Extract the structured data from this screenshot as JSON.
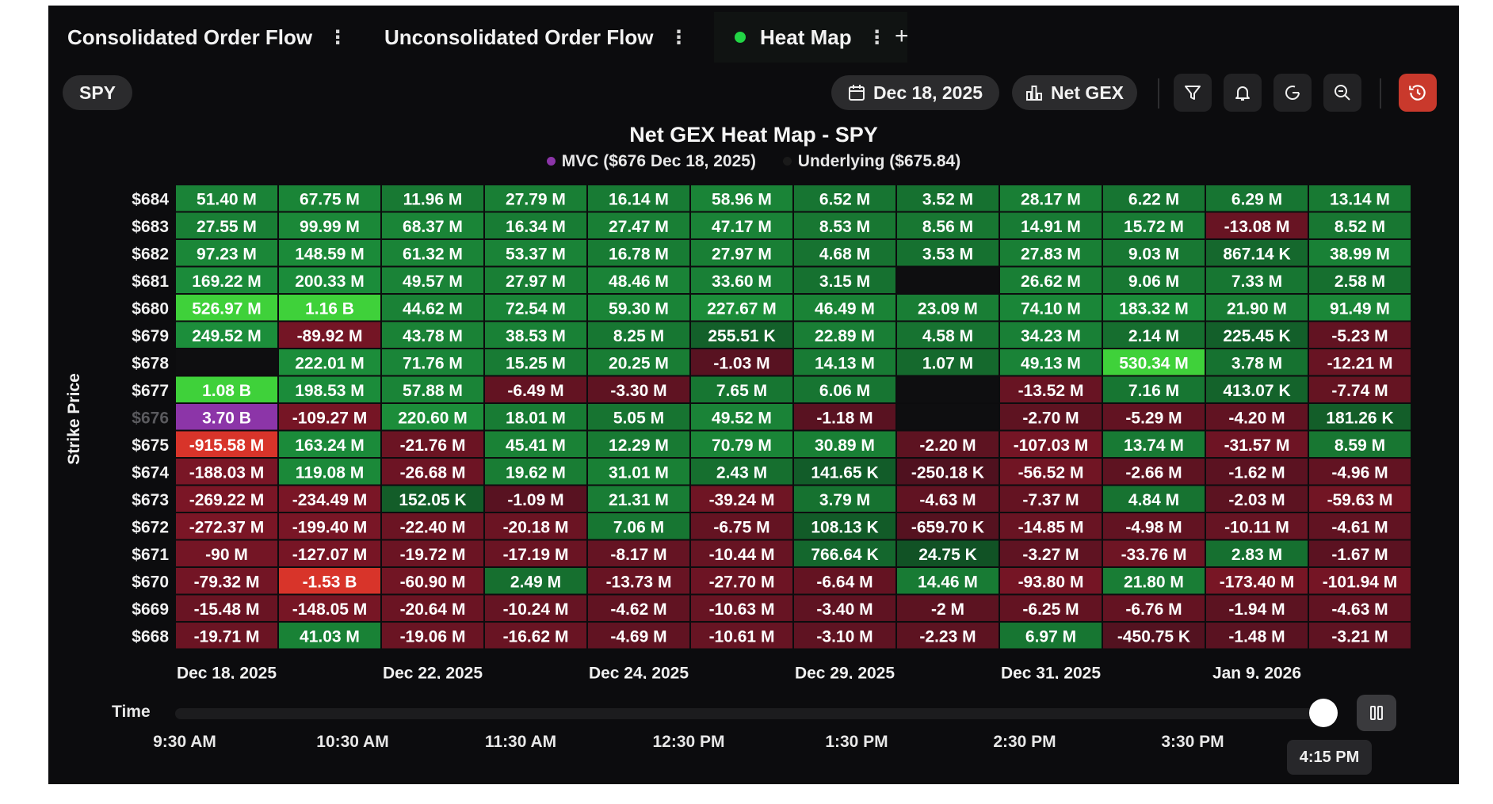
{
  "tabs": [
    {
      "label": "Consolidated Order Flow",
      "active": false
    },
    {
      "label": "Unconsolidated Order Flow",
      "active": false
    },
    {
      "label": "Heat Map",
      "active": true
    }
  ],
  "toolbar": {
    "symbol": "SPY",
    "date": "Dec 18, 2025",
    "metric": "Net GEX",
    "icons": [
      "filter-icon",
      "bell-icon",
      "refresh-icon",
      "zoom-icon",
      "history-icon"
    ]
  },
  "colors": {
    "positive": "#1b9a3a",
    "positive_strong": "#39d839",
    "negative": "#7a1424",
    "negative_strong": "#d8322a",
    "mvc": "#8c35a8",
    "underlying_dot": "#1a1a1a",
    "live_dot": "#22d545"
  },
  "chart_data": {
    "type": "heatmap",
    "title": "Net GEX Heat Map - SPY",
    "legend": [
      {
        "label": "MVC ($676 Dec 18, 2025)",
        "color": "#8c35a8"
      },
      {
        "label": "Underlying ($675.84)",
        "color": "#1a1a1a"
      }
    ],
    "ylabel": "Strike Price",
    "xlabel": "",
    "y": [
      "$684",
      "$683",
      "$682",
      "$681",
      "$680",
      "$679",
      "$678",
      "$677",
      "$676",
      "$675",
      "$674",
      "$673",
      "$672",
      "$671",
      "$670",
      "$669",
      "$668"
    ],
    "x_labels": [
      "Dec 18, 2025",
      "Dec 22, 2025",
      "Dec 24, 2025",
      "Dec 29, 2025",
      "Dec 31, 2025",
      "Jan 9, 2026"
    ],
    "columns": 12,
    "mvc_cell": {
      "row": 8,
      "col": 0
    },
    "values": [
      [
        "51.40 M",
        "67.75 M",
        "11.96 M",
        "27.79 M",
        "16.14 M",
        "58.96 M",
        "6.52 M",
        "3.52 M",
        "28.17 M",
        "6.22 M",
        "6.29 M",
        "13.14 M"
      ],
      [
        "27.55 M",
        "99.99 M",
        "68.37 M",
        "16.34 M",
        "27.47 M",
        "47.17 M",
        "8.53 M",
        "8.56 M",
        "14.91 M",
        "15.72 M",
        "-13.08 M",
        "8.52 M"
      ],
      [
        "97.23 M",
        "148.59 M",
        "61.32 M",
        "53.37 M",
        "16.78 M",
        "27.97 M",
        "4.68 M",
        "3.53 M",
        "27.83 M",
        "9.03 M",
        "867.14 K",
        "38.99 M"
      ],
      [
        "169.22 M",
        "200.33 M",
        "49.57 M",
        "27.97 M",
        "48.46 M",
        "33.60 M",
        "3.15 M",
        "",
        "26.62 M",
        "9.06 M",
        "7.33 M",
        "2.58 M"
      ],
      [
        "526.97 M",
        "1.16 B",
        "44.62 M",
        "72.54 M",
        "59.30 M",
        "227.67 M",
        "46.49 M",
        "23.09 M",
        "74.10 M",
        "183.32 M",
        "21.90 M",
        "91.49 M"
      ],
      [
        "249.52 M",
        "-89.92 M",
        "43.78 M",
        "38.53 M",
        "8.25 M",
        "255.51 K",
        "22.89 M",
        "4.58 M",
        "34.23 M",
        "2.14 M",
        "225.45 K",
        "-5.23 M"
      ],
      [
        "",
        "222.01 M",
        "71.76 M",
        "15.25 M",
        "20.25 M",
        "-1.03 M",
        "14.13 M",
        "1.07 M",
        "49.13 M",
        "530.34 M",
        "3.78 M",
        "-12.21 M"
      ],
      [
        "1.08 B",
        "198.53 M",
        "57.88 M",
        "-6.49 M",
        "-3.30 M",
        "7.65 M",
        "6.06 M",
        "",
        "-13.52 M",
        "7.16 M",
        "413.07 K",
        "-7.74 M"
      ],
      [
        "3.70 B",
        "-109.27 M",
        "220.60 M",
        "18.01 M",
        "5.05 M",
        "49.52 M",
        "-1.18 M",
        "",
        "-2.70 M",
        "-5.29 M",
        "-4.20 M",
        "181.26 K"
      ],
      [
        "-915.58 M",
        "163.24 M",
        "-21.76 M",
        "45.41 M",
        "12.29 M",
        "70.79 M",
        "30.89 M",
        "-2.20 M",
        "-107.03 M",
        "13.74 M",
        "-31.57 M",
        "8.59 M"
      ],
      [
        "-188.03 M",
        "119.08 M",
        "-26.68 M",
        "19.62 M",
        "31.01 M",
        "2.43 M",
        "141.65 K",
        "-250.18 K",
        "-56.52 M",
        "-2.66 M",
        "-1.62 M",
        "-4.96 M"
      ],
      [
        "-269.22 M",
        "-234.49 M",
        "152.05 K",
        "-1.09 M",
        "21.31 M",
        "-39.24 M",
        "3.79 M",
        "-4.63 M",
        "-7.37 M",
        "4.84 M",
        "-2.03 M",
        "-59.63 M"
      ],
      [
        "-272.37 M",
        "-199.40 M",
        "-22.40 M",
        "-20.18 M",
        "7.06 M",
        "-6.75 M",
        "108.13 K",
        "-659.70 K",
        "-14.85 M",
        "-4.98 M",
        "-10.11 M",
        "-4.61 M"
      ],
      [
        "-90 M",
        "-127.07 M",
        "-19.72 M",
        "-17.19 M",
        "-8.17 M",
        "-10.44 M",
        "766.64 K",
        "24.75 K",
        "-3.27 M",
        "-33.76 M",
        "2.83 M",
        "-1.67 M"
      ],
      [
        "-79.32 M",
        "-1.53 B",
        "-60.90 M",
        "2.49 M",
        "-13.73 M",
        "-27.70 M",
        "-6.64 M",
        "14.46 M",
        "-93.80 M",
        "21.80 M",
        "-173.40 M",
        "-101.94 M"
      ],
      [
        "-15.48 M",
        "-148.05 M",
        "-20.64 M",
        "-10.24 M",
        "-4.62 M",
        "-10.63 M",
        "-3.40 M",
        "-2 M",
        "-6.25 M",
        "-6.76 M",
        "-1.94 M",
        "-4.63 M"
      ],
      [
        "-19.71 M",
        "41.03 M",
        "-19.06 M",
        "-16.62 M",
        "-4.69 M",
        "-10.61 M",
        "-3.10 M",
        "-2.23 M",
        "6.97 M",
        "-450.75 K",
        "-1.48 M",
        "-3.21 M"
      ]
    ]
  },
  "time_slider": {
    "label": "Time",
    "ticks": [
      "9:30 AM",
      "10:30 AM",
      "11:30 AM",
      "12:30 PM",
      "1:30 PM",
      "2:30 PM",
      "3:30 PM"
    ],
    "current": "4:15 PM",
    "position": 1.0
  }
}
